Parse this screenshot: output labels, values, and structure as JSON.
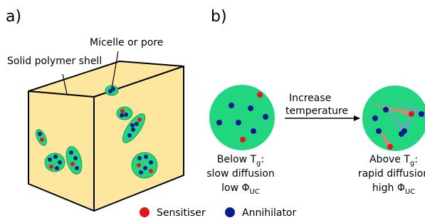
{
  "panel_a": {
    "label": "a)",
    "pore_label": "Micelle or pore",
    "shell_label": "Solid polymer shell"
  },
  "panel_b": {
    "label": "b)",
    "arrow_label": [
      "Increase",
      "temperature"
    ],
    "below": {
      "line1": {
        "text": "Below T",
        "sub": "g",
        "tail": ":"
      },
      "line2": "slow diffusion",
      "line3": {
        "text": "low Φ",
        "sub": "UC"
      }
    },
    "above": {
      "line1": {
        "text": "Above T",
        "sub": "g",
        "tail": ":"
      },
      "line2": "rapid diffusion",
      "line3": {
        "text": "high Φ",
        "sub": "UC"
      }
    }
  },
  "legend": [
    {
      "name": "Sensitiser",
      "color": "#e8141b"
    },
    {
      "name": "Annihilator",
      "color": "#0b1a8e"
    }
  ]
}
